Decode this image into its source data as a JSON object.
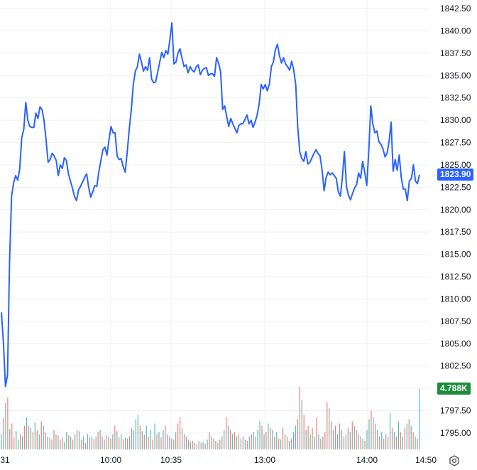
{
  "colors": {
    "price_line": "#2962ff",
    "grid": "#eef0f3",
    "volume_up": "#26a69a",
    "volume_down": "#ef5350",
    "price_badge_bg": "#2962ff",
    "volume_badge_bg": "#1e8c3a",
    "text": "#131722"
  },
  "price_badge": "1823.90",
  "volume_badge": "4.788K",
  "settings_icon": "gear-icon",
  "chart_data": {
    "type": "line",
    "grid": true,
    "y_axis_position": "right",
    "ylim": [
      1792.5,
      1843.5
    ],
    "y_ticks": [
      "1842.50",
      "1840.00",
      "1837.50",
      "1835.00",
      "1832.50",
      "1830.00",
      "1827.50",
      "1825.00",
      "1822.50",
      "1820.00",
      "1817.50",
      "1815.00",
      "1812.50",
      "1810.00",
      "1807.50",
      "1805.00",
      "1802.50",
      "1800.00",
      "1797.50",
      "1795.00"
    ],
    "x_ticks": [
      "31",
      "10:00",
      "10:35",
      "13:00",
      "14:00",
      "14:50"
    ],
    "last_price": 1823.9,
    "series": [
      {
        "values": [
          1808.5,
          1805.0,
          1800.2,
          1801.5,
          1814.0,
          1821.5,
          1823.0,
          1823.8,
          1823.3,
          1824.5,
          1828.0,
          1829.0,
          1832.0,
          1830.0,
          1829.3,
          1829.2,
          1829.2,
          1830.8,
          1830.2,
          1831.5,
          1831.2,
          1830.0,
          1827.8,
          1825.3,
          1825.6,
          1826.3,
          1826.0,
          1825.5,
          1823.8,
          1825.0,
          1824.6,
          1825.8,
          1825.5,
          1824.0,
          1823.2,
          1822.4,
          1821.5,
          1821.0,
          1822.2,
          1822.6,
          1823.1,
          1823.6,
          1824.0,
          1822.5,
          1821.4,
          1822.0,
          1822.7,
          1822.6,
          1824.2,
          1825.5,
          1826.7,
          1827.0,
          1826.1,
          1827.8,
          1829.3,
          1828.6,
          1828.6,
          1826.0,
          1825.6,
          1825.7,
          1824.8,
          1824.2,
          1826.5,
          1829.0,
          1831.2,
          1834.0,
          1835.5,
          1836.0,
          1837.4,
          1836.5,
          1835.5,
          1836.0,
          1835.6,
          1837.0,
          1834.6,
          1834.2,
          1834.3,
          1835.4,
          1836.5,
          1837.6,
          1837.0,
          1837.8,
          1837.4,
          1839.0,
          1840.9,
          1836.3,
          1836.5,
          1837.5,
          1838.0,
          1836.9,
          1836.0,
          1836.2,
          1835.3,
          1836.0,
          1835.6,
          1835.4,
          1836.0,
          1836.2,
          1835.1,
          1835.6,
          1835.8,
          1835.9,
          1835.0,
          1835.2,
          1835.2,
          1834.9,
          1837.0,
          1836.4,
          1835.4,
          1831.2,
          1831.6,
          1830.4,
          1829.3,
          1830.2,
          1829.6,
          1829.1,
          1828.6,
          1829.4,
          1829.6,
          1829.6,
          1830.1,
          1830.6,
          1829.6,
          1830.0,
          1829.2,
          1829.8,
          1830.6,
          1831.8,
          1834.0,
          1833.5,
          1834.0,
          1833.3,
          1834.0,
          1836.0,
          1836.5,
          1837.9,
          1838.5,
          1837.2,
          1836.4,
          1837.0,
          1836.3,
          1836.0,
          1835.6,
          1836.6,
          1835.7,
          1834.0,
          1829.3,
          1826.5,
          1825.7,
          1825.4,
          1826.5,
          1825.1,
          1825.3,
          1825.8,
          1826.3,
          1826.7,
          1826.3,
          1826.0,
          1824.4,
          1822.1,
          1823.6,
          1824.2,
          1823.9,
          1824.1,
          1823.8,
          1823.5,
          1822.0,
          1821.5,
          1823.6,
          1826.5,
          1822.6,
          1821.6,
          1821.1,
          1821.8,
          1822.4,
          1822.8,
          1824.1,
          1823.5,
          1825.4,
          1824.2,
          1822.7,
          1826.5,
          1831.6,
          1829.6,
          1828.6,
          1828.8,
          1827.6,
          1827.3,
          1826.8,
          1825.9,
          1826.3,
          1827.6,
          1829.8,
          1824.3,
          1825.6,
          1824.4,
          1826.1,
          1823.6,
          1822.3,
          1822.3,
          1821.0,
          1823.2,
          1823.5,
          1825.0,
          1823.2,
          1822.9,
          1823.9
        ]
      }
    ],
    "volume": [
      {
        "v": 14,
        "c": "up"
      },
      {
        "v": 29,
        "c": "down"
      },
      {
        "v": 43,
        "c": "up"
      },
      {
        "v": 48,
        "c": "down"
      },
      {
        "v": 19,
        "c": "up"
      },
      {
        "v": 24,
        "c": "down"
      },
      {
        "v": 11,
        "c": "down"
      },
      {
        "v": 17,
        "c": "up"
      },
      {
        "v": 9,
        "c": "up"
      },
      {
        "v": 14,
        "c": "down"
      },
      {
        "v": 12,
        "c": "up"
      },
      {
        "v": 22,
        "c": "down"
      },
      {
        "v": 30,
        "c": "up"
      },
      {
        "v": 22,
        "c": "down"
      },
      {
        "v": 20,
        "c": "up"
      },
      {
        "v": 16,
        "c": "down"
      },
      {
        "v": 25,
        "c": "up"
      },
      {
        "v": 18,
        "c": "down"
      },
      {
        "v": 14,
        "c": "up"
      },
      {
        "v": 26,
        "c": "down"
      },
      {
        "v": 22,
        "c": "up"
      },
      {
        "v": 16,
        "c": "down"
      },
      {
        "v": 12,
        "c": "up"
      },
      {
        "v": 11,
        "c": "down"
      },
      {
        "v": 9,
        "c": "up"
      },
      {
        "v": 18,
        "c": "down"
      },
      {
        "v": 14,
        "c": "up"
      },
      {
        "v": 13,
        "c": "down"
      },
      {
        "v": 9,
        "c": "up"
      },
      {
        "v": 11,
        "c": "down"
      },
      {
        "v": 7,
        "c": "up"
      },
      {
        "v": 16,
        "c": "up"
      },
      {
        "v": 13,
        "c": "down"
      },
      {
        "v": 12,
        "c": "up"
      },
      {
        "v": 9,
        "c": "down"
      },
      {
        "v": 14,
        "c": "up"
      },
      {
        "v": 18,
        "c": "down"
      },
      {
        "v": 17,
        "c": "up"
      },
      {
        "v": 9,
        "c": "down"
      },
      {
        "v": 12,
        "c": "up"
      },
      {
        "v": 6,
        "c": "down"
      },
      {
        "v": 14,
        "c": "up"
      },
      {
        "v": 11,
        "c": "down"
      },
      {
        "v": 12,
        "c": "up"
      },
      {
        "v": 10,
        "c": "down"
      },
      {
        "v": 12,
        "c": "up"
      },
      {
        "v": 16,
        "c": "down"
      },
      {
        "v": 18,
        "c": "up"
      },
      {
        "v": 12,
        "c": "down"
      },
      {
        "v": 9,
        "c": "up"
      },
      {
        "v": 13,
        "c": "down"
      },
      {
        "v": 12,
        "c": "up"
      },
      {
        "v": 10,
        "c": "down"
      },
      {
        "v": 14,
        "c": "up"
      },
      {
        "v": 22,
        "c": "down"
      },
      {
        "v": 17,
        "c": "up"
      },
      {
        "v": 11,
        "c": "down"
      },
      {
        "v": 14,
        "c": "up"
      },
      {
        "v": 9,
        "c": "down"
      },
      {
        "v": 11,
        "c": "up"
      },
      {
        "v": 10,
        "c": "down"
      },
      {
        "v": 12,
        "c": "up"
      },
      {
        "v": 20,
        "c": "down"
      },
      {
        "v": 18,
        "c": "up"
      },
      {
        "v": 28,
        "c": "up"
      },
      {
        "v": 32,
        "c": "up"
      },
      {
        "v": 22,
        "c": "down"
      },
      {
        "v": 17,
        "c": "up"
      },
      {
        "v": 14,
        "c": "down"
      },
      {
        "v": 22,
        "c": "up"
      },
      {
        "v": 12,
        "c": "down"
      },
      {
        "v": 18,
        "c": "up"
      },
      {
        "v": 9,
        "c": "down"
      },
      {
        "v": 24,
        "c": "up"
      },
      {
        "v": 14,
        "c": "down"
      },
      {
        "v": 16,
        "c": "up"
      },
      {
        "v": 11,
        "c": "down"
      },
      {
        "v": 18,
        "c": "up"
      },
      {
        "v": 22,
        "c": "down"
      },
      {
        "v": 14,
        "c": "up"
      },
      {
        "v": 12,
        "c": "down"
      },
      {
        "v": 10,
        "c": "up"
      },
      {
        "v": 9,
        "c": "down"
      },
      {
        "v": 16,
        "c": "up"
      },
      {
        "v": 24,
        "c": "down"
      },
      {
        "v": 30,
        "c": "down"
      },
      {
        "v": 20,
        "c": "up"
      },
      {
        "v": 14,
        "c": "down"
      },
      {
        "v": 12,
        "c": "up"
      },
      {
        "v": 9,
        "c": "down"
      },
      {
        "v": 7,
        "c": "up"
      },
      {
        "v": 8,
        "c": "down"
      },
      {
        "v": 6,
        "c": "up"
      },
      {
        "v": 5,
        "c": "down"
      },
      {
        "v": 8,
        "c": "up"
      },
      {
        "v": 6,
        "c": "down"
      },
      {
        "v": 7,
        "c": "up"
      },
      {
        "v": 5,
        "c": "down"
      },
      {
        "v": 9,
        "c": "up"
      },
      {
        "v": 16,
        "c": "down"
      },
      {
        "v": 12,
        "c": "up"
      },
      {
        "v": 10,
        "c": "down"
      },
      {
        "v": 8,
        "c": "up"
      },
      {
        "v": 6,
        "c": "down"
      },
      {
        "v": 9,
        "c": "up"
      },
      {
        "v": 12,
        "c": "down"
      },
      {
        "v": 18,
        "c": "up"
      },
      {
        "v": 30,
        "c": "down"
      },
      {
        "v": 22,
        "c": "up"
      },
      {
        "v": 18,
        "c": "down"
      },
      {
        "v": 14,
        "c": "up"
      },
      {
        "v": 16,
        "c": "down"
      },
      {
        "v": 12,
        "c": "up"
      },
      {
        "v": 14,
        "c": "down"
      },
      {
        "v": 10,
        "c": "up"
      },
      {
        "v": 12,
        "c": "down"
      },
      {
        "v": 9,
        "c": "up"
      },
      {
        "v": 8,
        "c": "down"
      },
      {
        "v": 12,
        "c": "up"
      },
      {
        "v": 14,
        "c": "down"
      },
      {
        "v": 16,
        "c": "up"
      },
      {
        "v": 12,
        "c": "down"
      },
      {
        "v": 18,
        "c": "up"
      },
      {
        "v": 26,
        "c": "up"
      },
      {
        "v": 22,
        "c": "down"
      },
      {
        "v": 14,
        "c": "up"
      },
      {
        "v": 16,
        "c": "down"
      },
      {
        "v": 24,
        "c": "up"
      },
      {
        "v": 20,
        "c": "down"
      },
      {
        "v": 18,
        "c": "up"
      },
      {
        "v": 12,
        "c": "down"
      },
      {
        "v": 16,
        "c": "up"
      },
      {
        "v": 10,
        "c": "down"
      },
      {
        "v": 9,
        "c": "up"
      },
      {
        "v": 20,
        "c": "down"
      },
      {
        "v": 14,
        "c": "up"
      },
      {
        "v": 12,
        "c": "down"
      },
      {
        "v": 8,
        "c": "up"
      },
      {
        "v": 10,
        "c": "down"
      },
      {
        "v": 16,
        "c": "up"
      },
      {
        "v": 22,
        "c": "up"
      },
      {
        "v": 28,
        "c": "down"
      },
      {
        "v": 58,
        "c": "down"
      },
      {
        "v": 46,
        "c": "up"
      },
      {
        "v": 32,
        "c": "down"
      },
      {
        "v": 18,
        "c": "up"
      },
      {
        "v": 22,
        "c": "down"
      },
      {
        "v": 14,
        "c": "up"
      },
      {
        "v": 20,
        "c": "down"
      },
      {
        "v": 12,
        "c": "up"
      },
      {
        "v": 30,
        "c": "down"
      },
      {
        "v": 14,
        "c": "up"
      },
      {
        "v": 10,
        "c": "down"
      },
      {
        "v": 12,
        "c": "up"
      },
      {
        "v": 16,
        "c": "down"
      },
      {
        "v": 44,
        "c": "down"
      },
      {
        "v": 38,
        "c": "up"
      },
      {
        "v": 26,
        "c": "down"
      },
      {
        "v": 18,
        "c": "up"
      },
      {
        "v": 22,
        "c": "down"
      },
      {
        "v": 14,
        "c": "up"
      },
      {
        "v": 24,
        "c": "down"
      },
      {
        "v": 18,
        "c": "up"
      },
      {
        "v": 12,
        "c": "down"
      },
      {
        "v": 14,
        "c": "up"
      },
      {
        "v": 20,
        "c": "down"
      },
      {
        "v": 16,
        "c": "up"
      },
      {
        "v": 26,
        "c": "down"
      },
      {
        "v": 22,
        "c": "up"
      },
      {
        "v": 18,
        "c": "down"
      },
      {
        "v": 14,
        "c": "up"
      },
      {
        "v": 12,
        "c": "down"
      },
      {
        "v": 10,
        "c": "up"
      },
      {
        "v": 8,
        "c": "down"
      },
      {
        "v": 18,
        "c": "up"
      },
      {
        "v": 28,
        "c": "up"
      },
      {
        "v": 36,
        "c": "down"
      },
      {
        "v": 30,
        "c": "up"
      },
      {
        "v": 24,
        "c": "down"
      },
      {
        "v": 18,
        "c": "up"
      },
      {
        "v": 12,
        "c": "down"
      },
      {
        "v": 16,
        "c": "up"
      },
      {
        "v": 10,
        "c": "down"
      },
      {
        "v": 14,
        "c": "up"
      },
      {
        "v": 12,
        "c": "down"
      },
      {
        "v": 34,
        "c": "up"
      },
      {
        "v": 20,
        "c": "down"
      },
      {
        "v": 16,
        "c": "up"
      },
      {
        "v": 12,
        "c": "down"
      },
      {
        "v": 26,
        "c": "up"
      },
      {
        "v": 16,
        "c": "down"
      },
      {
        "v": 12,
        "c": "up"
      },
      {
        "v": 20,
        "c": "down"
      },
      {
        "v": 24,
        "c": "up"
      },
      {
        "v": 28,
        "c": "down"
      },
      {
        "v": 22,
        "c": "up"
      },
      {
        "v": 16,
        "c": "down"
      },
      {
        "v": 12,
        "c": "up"
      },
      {
        "v": 10,
        "c": "down"
      },
      {
        "v": 56,
        "c": "up"
      }
    ]
  }
}
